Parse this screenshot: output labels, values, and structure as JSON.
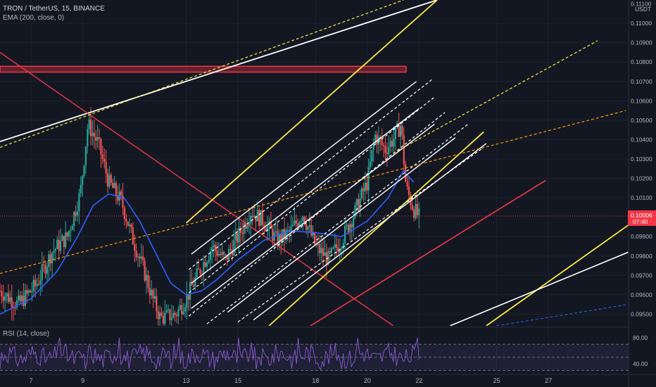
{
  "header": {
    "symbol_line": "TRON / TetherUS, 15, BINANCE",
    "ema_line": "EMA (200, close, 0)",
    "rsi_line": "RSI (14, close)"
  },
  "currency": "USDT",
  "chart_data": [
    {
      "type": "candlestick",
      "title": "TRON / TetherUS, 15, BINANCE",
      "y_ticks": [
        "0.11100",
        "0.11000",
        "0.10900",
        "0.10800",
        "0.10700",
        "0.10600",
        "0.10500",
        "0.10400",
        "0.10300",
        "0.10200",
        "0.10100",
        "0.09900",
        "0.09800",
        "0.09700",
        "0.09600",
        "0.09500"
      ],
      "ylim": [
        0.0944,
        0.1112
      ],
      "x_ticks": [
        "7",
        "9",
        "13",
        "15",
        "18",
        "20",
        "22",
        "25",
        "27"
      ],
      "xlim": [
        5.8,
        30.1
      ],
      "last_price": "0.10006",
      "countdown": "07:40",
      "last_price_color": "#f23645",
      "ema_color": "#2962ff",
      "ema_label": "EMA (200, close, 0)",
      "price_path": [
        [
          5.8,
          0.0962
        ],
        [
          6.5,
          0.0955
        ],
        [
          7.2,
          0.0965
        ],
        [
          7.8,
          0.0982
        ],
        [
          8.4,
          0.099
        ],
        [
          8.9,
          0.1012
        ],
        [
          9.2,
          0.1048
        ],
        [
          9.6,
          0.1038
        ],
        [
          10.0,
          0.1018
        ],
        [
          10.5,
          0.1008
        ],
        [
          10.9,
          0.099
        ],
        [
          11.3,
          0.0975
        ],
        [
          11.7,
          0.0958
        ],
        [
          12.0,
          0.0948
        ],
        [
          12.6,
          0.095
        ],
        [
          13.0,
          0.0958
        ],
        [
          13.5,
          0.0972
        ],
        [
          14.0,
          0.0985
        ],
        [
          14.5,
          0.0978
        ],
        [
          15.0,
          0.099
        ],
        [
          15.5,
          0.1003
        ],
        [
          16.0,
          0.0998
        ],
        [
          16.5,
          0.0988
        ],
        [
          17.0,
          0.0992
        ],
        [
          17.5,
          0.1002
        ],
        [
          18.0,
          0.0985
        ],
        [
          18.5,
          0.0978
        ],
        [
          19.0,
          0.0988
        ],
        [
          19.5,
          0.1002
        ],
        [
          20.0,
          0.1018
        ],
        [
          20.3,
          0.1042
        ],
        [
          20.7,
          0.1035
        ],
        [
          21.0,
          0.104
        ],
        [
          21.3,
          0.1048
        ],
        [
          21.5,
          0.1015
        ],
        [
          21.8,
          0.1004
        ],
        [
          22.0,
          0.1
        ]
      ],
      "ema_path": [
        [
          5.8,
          0.095
        ],
        [
          7.0,
          0.0958
        ],
        [
          8.0,
          0.0972
        ],
        [
          8.8,
          0.099
        ],
        [
          9.4,
          0.1006
        ],
        [
          10.0,
          0.1012
        ],
        [
          10.6,
          0.101
        ],
        [
          11.2,
          0.0998
        ],
        [
          11.8,
          0.0982
        ],
        [
          12.4,
          0.0966
        ],
        [
          13.0,
          0.096
        ],
        [
          13.6,
          0.0962
        ],
        [
          14.2,
          0.0968
        ],
        [
          15.0,
          0.0978
        ],
        [
          16.0,
          0.0988
        ],
        [
          17.0,
          0.0993
        ],
        [
          18.0,
          0.0992
        ],
        [
          19.0,
          0.099
        ],
        [
          20.0,
          0.0998
        ],
        [
          20.8,
          0.101
        ],
        [
          21.4,
          0.1024
        ],
        [
          21.8,
          0.1018
        ]
      ],
      "annotations": {
        "zone": {
          "x": [
            5.8,
            21.5
          ],
          "y": [
            0.10748,
            0.10778
          ],
          "color": "#f23645"
        },
        "lines": [
          {
            "color": "#ffffff",
            "width": 1.8,
            "dash": false,
            "points": [
              [
                5.8,
                0.1039
              ],
              [
                22.7,
                0.1112
              ]
            ]
          },
          {
            "color": "#f23645",
            "width": 1.4,
            "dash": false,
            "points": [
              [
                5.8,
                0.1085
              ],
              [
                21.0,
                0.0944
              ]
            ]
          },
          {
            "color": "#ffeb3b",
            "width": 1.2,
            "dash": true,
            "points": [
              [
                5.8,
                0.1036
              ],
              [
                21.4,
                0.1112
              ]
            ]
          },
          {
            "color": "#ffeb3b",
            "width": 1.8,
            "dash": false,
            "points": [
              [
                13.0,
                0.0997
              ],
              [
                22.7,
                0.1112
              ]
            ]
          },
          {
            "color": "#ffeb3b",
            "width": 1.8,
            "dash": false,
            "points": [
              [
                16.2,
                0.0944
              ],
              [
                24.5,
                0.1044
              ]
            ]
          },
          {
            "color": "#f23645",
            "width": 1.6,
            "dash": false,
            "points": [
              [
                17.8,
                0.0944
              ],
              [
                26.9,
                0.1019
              ]
            ]
          },
          {
            "color": "#ffffff",
            "width": 1.4,
            "dash": false,
            "points": [
              [
                13.2,
                0.0981
              ],
              [
                21.9,
                0.107
              ]
            ]
          },
          {
            "color": "#ffffff",
            "width": 1.4,
            "dash": false,
            "points": [
              [
                13.2,
                0.0966
              ],
              [
                22.0,
                0.1056
              ]
            ]
          },
          {
            "color": "#ffffff",
            "width": 1.4,
            "dash": false,
            "points": [
              [
                13.2,
                0.0953
              ],
              [
                22.6,
                0.1048
              ]
            ]
          },
          {
            "color": "#ffffff",
            "width": 1.4,
            "dash": false,
            "points": [
              [
                14.6,
                0.0951
              ],
              [
                23.4,
                0.1041
              ]
            ]
          },
          {
            "color": "#ffffff",
            "width": 1.4,
            "dash": false,
            "points": [
              [
                15.6,
                0.0947
              ],
              [
                24.6,
                0.1038
              ]
            ]
          },
          {
            "color": "#ffffff",
            "width": 1.2,
            "dash": true,
            "points": [
              [
                13.1,
                0.0973
              ],
              [
                22.5,
                0.1071
              ]
            ]
          },
          {
            "color": "#ffffff",
            "width": 1.2,
            "dash": true,
            "points": [
              [
                13.1,
                0.0961
              ],
              [
                22.6,
                0.1062
              ]
            ]
          },
          {
            "color": "#ffffff",
            "width": 1.2,
            "dash": true,
            "points": [
              [
                13.1,
                0.0949
              ],
              [
                23.0,
                0.1054
              ]
            ]
          },
          {
            "color": "#ffffff",
            "width": 1.2,
            "dash": true,
            "points": [
              [
                13.8,
                0.0945
              ],
              [
                23.9,
                0.1048
              ]
            ]
          },
          {
            "color": "#ffffff",
            "width": 1.2,
            "dash": true,
            "points": [
              [
                15.0,
                0.0946
              ],
              [
                24.5,
                0.1036
              ]
            ]
          },
          {
            "color": "#ffeb3b",
            "width": 1.2,
            "dash": true,
            "points": [
              [
                21.0,
                0.1033
              ],
              [
                28.9,
                0.1091
              ]
            ]
          },
          {
            "color": "#ff9800",
            "width": 1.2,
            "dash": true,
            "points": [
              [
                5.8,
                0.0971
              ],
              [
                30.0,
                0.1055
              ]
            ]
          },
          {
            "color": "#ffeb3b",
            "width": 1.8,
            "dash": false,
            "points": [
              [
                24.6,
                0.0944
              ],
              [
                30.1,
                0.0996
              ]
            ]
          },
          {
            "color": "#ffffff",
            "width": 1.6,
            "dash": false,
            "points": [
              [
                23.2,
                0.0944
              ],
              [
                30.1,
                0.0982
              ]
            ]
          },
          {
            "color": "#2962ff",
            "width": 1.0,
            "dash": true,
            "points": [
              [
                25.0,
                0.0944
              ],
              [
                30.1,
                0.0955
              ]
            ]
          }
        ]
      }
    },
    {
      "type": "line",
      "title": "RSI (14, close)",
      "y_ticks": [
        "80.00",
        "40.00"
      ],
      "ylim": [
        25,
        95
      ],
      "band": [
        30,
        70
      ],
      "mid": 50,
      "color": "#7e57c2"
    }
  ]
}
